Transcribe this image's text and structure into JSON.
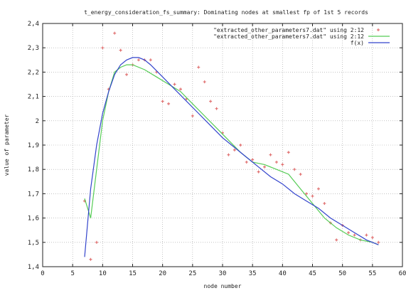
{
  "chart_data": {
    "type": "line",
    "title": "t_energy_consideration_fs_summary: Dominating nodes at smallest fp of 1st 5 records",
    "xlabel": "node number",
    "ylabel": "value of parameter",
    "xlim": [
      0,
      60
    ],
    "ylim": [
      1.4,
      2.4
    ],
    "xticks": [
      "0",
      "5",
      "10",
      "15",
      "20",
      "25",
      "30",
      "35",
      "40",
      "45",
      "50",
      "55",
      "60"
    ],
    "yticks": [
      "1,4",
      "1,5",
      "1,6",
      "1,7",
      "1,8",
      "1,9",
      "2",
      "2,1",
      "2,2",
      "2,3",
      "2,4"
    ],
    "grid": true,
    "legend_position": "top-right",
    "series": [
      {
        "name": "\"extracted_other_parameters7.dat\" using 2:12",
        "style": "points",
        "color": "#e07070",
        "x": [
          7,
          8,
          9,
          10,
          11,
          12,
          13,
          14,
          15,
          16,
          17,
          18,
          19,
          20,
          21,
          22,
          23,
          24,
          25,
          26,
          27,
          28,
          29,
          30,
          31,
          32,
          33,
          34,
          35,
          36,
          37,
          38,
          39,
          40,
          41,
          42,
          43,
          44,
          45,
          46,
          47,
          48,
          49,
          50,
          51,
          52,
          53,
          54,
          55,
          56
        ],
        "y": [
          1.67,
          1.43,
          1.5,
          2.3,
          2.13,
          2.36,
          2.29,
          2.19,
          2.23,
          2.25,
          2.25,
          2.25,
          2.2,
          2.08,
          2.07,
          2.15,
          2.13,
          2.09,
          2.02,
          2.22,
          2.16,
          2.08,
          2.05,
          1.95,
          1.86,
          1.88,
          1.9,
          1.83,
          1.84,
          1.79,
          1.81,
          1.86,
          1.83,
          1.82,
          1.87,
          1.8,
          1.78,
          1.7,
          1.69,
          1.72,
          1.66,
          1.58,
          1.51,
          1.57,
          1.54,
          1.53,
          1.51,
          1.53,
          1.52,
          1.5
        ]
      },
      {
        "name": "\"extracted_other_parameters7.dat\" using 2:12",
        "style": "line",
        "color": "#55cc55",
        "x": [
          7,
          8,
          9,
          10,
          11,
          12,
          13,
          14,
          15,
          17,
          19,
          21,
          23,
          25,
          27,
          29,
          31,
          33,
          35,
          37,
          39,
          41,
          43,
          45,
          47,
          49,
          51,
          53,
          55,
          56
        ],
        "y": [
          1.68,
          1.6,
          1.8,
          2.0,
          2.12,
          2.2,
          2.22,
          2.23,
          2.23,
          2.21,
          2.18,
          2.15,
          2.12,
          2.07,
          2.02,
          1.97,
          1.92,
          1.87,
          1.83,
          1.82,
          1.8,
          1.78,
          1.72,
          1.66,
          1.6,
          1.56,
          1.53,
          1.51,
          1.5,
          1.49
        ]
      },
      {
        "name": "f(x)",
        "style": "line",
        "color": "#3344cc",
        "x": [
          7,
          8,
          9,
          10,
          11,
          12,
          13,
          14,
          15,
          16,
          17,
          18,
          20,
          22,
          24,
          26,
          28,
          30,
          32,
          34,
          36,
          38,
          40,
          42,
          44,
          46,
          48,
          50,
          52,
          54,
          56
        ],
        "y": [
          1.44,
          1.72,
          1.9,
          2.03,
          2.12,
          2.19,
          2.23,
          2.25,
          2.26,
          2.26,
          2.25,
          2.23,
          2.18,
          2.13,
          2.08,
          2.03,
          1.98,
          1.93,
          1.89,
          1.85,
          1.81,
          1.77,
          1.74,
          1.7,
          1.67,
          1.64,
          1.6,
          1.57,
          1.54,
          1.51,
          1.49
        ]
      }
    ]
  }
}
